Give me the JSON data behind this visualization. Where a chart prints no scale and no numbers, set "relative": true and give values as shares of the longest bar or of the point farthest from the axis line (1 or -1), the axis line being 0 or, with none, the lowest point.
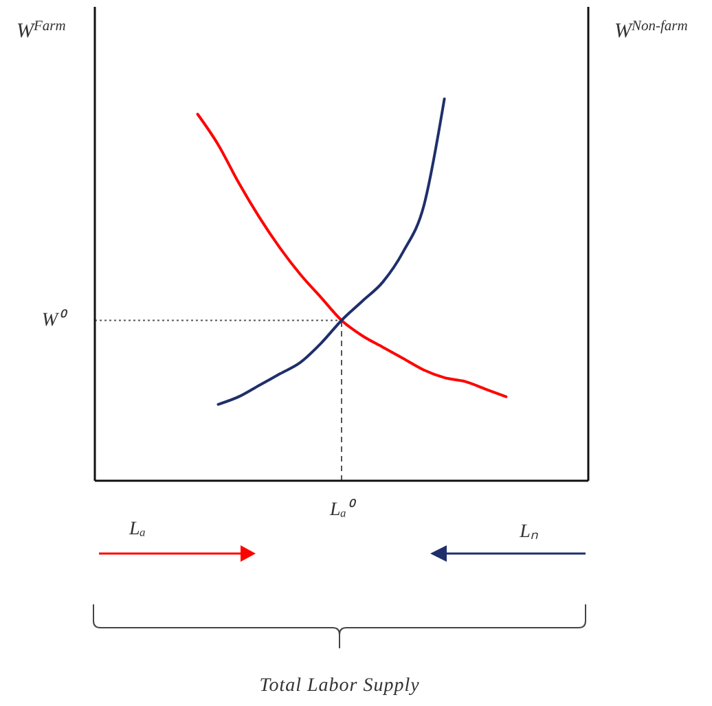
{
  "chart_data": {
    "type": "line",
    "relative": true,
    "line_style": "solid",
    "categories": [
      null,
      null,
      null,
      null,
      null,
      null,
      null,
      null,
      null,
      null,
      null,
      null,
      null,
      null,
      null,
      null,
      null,
      null,
      null,
      null,
      null,
      null,
      null,
      null,
      null
    ],
    "series": [
      {
        "color": "#ff0000",
        "values": [
          null,
          null,
          null,
          null,
          null,
          0.96,
          0.88,
          0.78,
          0.69,
          0.61,
          0.54,
          0.48,
          0.42,
          0.38,
          0.35,
          0.32,
          0.29,
          0.27,
          0.26,
          0.24,
          0.22,
          null,
          null,
          null,
          null
        ]
      },
      {
        "color": "#1f2f6b",
        "values": [
          null,
          null,
          null,
          null,
          null,
          null,
          0.2,
          0.22,
          0.25,
          0.28,
          0.31,
          0.36,
          0.42,
          0.47,
          0.52,
          0.6,
          0.72,
          1.0,
          null,
          null,
          null,
          null,
          null,
          null,
          null
        ]
      }
    ],
    "ylabel": "W$^{Farm}$",
    "y2label": "W$^{Non-farm}$",
    "ref_lines": [
      {
        "axis": "y",
        "value": 0.42,
        "label": "W⁰",
        "line_style": "dotted"
      }
    ],
    "annotations": [
      "Lₐ⁰",
      "Lₐ",
      "Lₙ",
      "Total Labor Supply"
    ]
  }
}
